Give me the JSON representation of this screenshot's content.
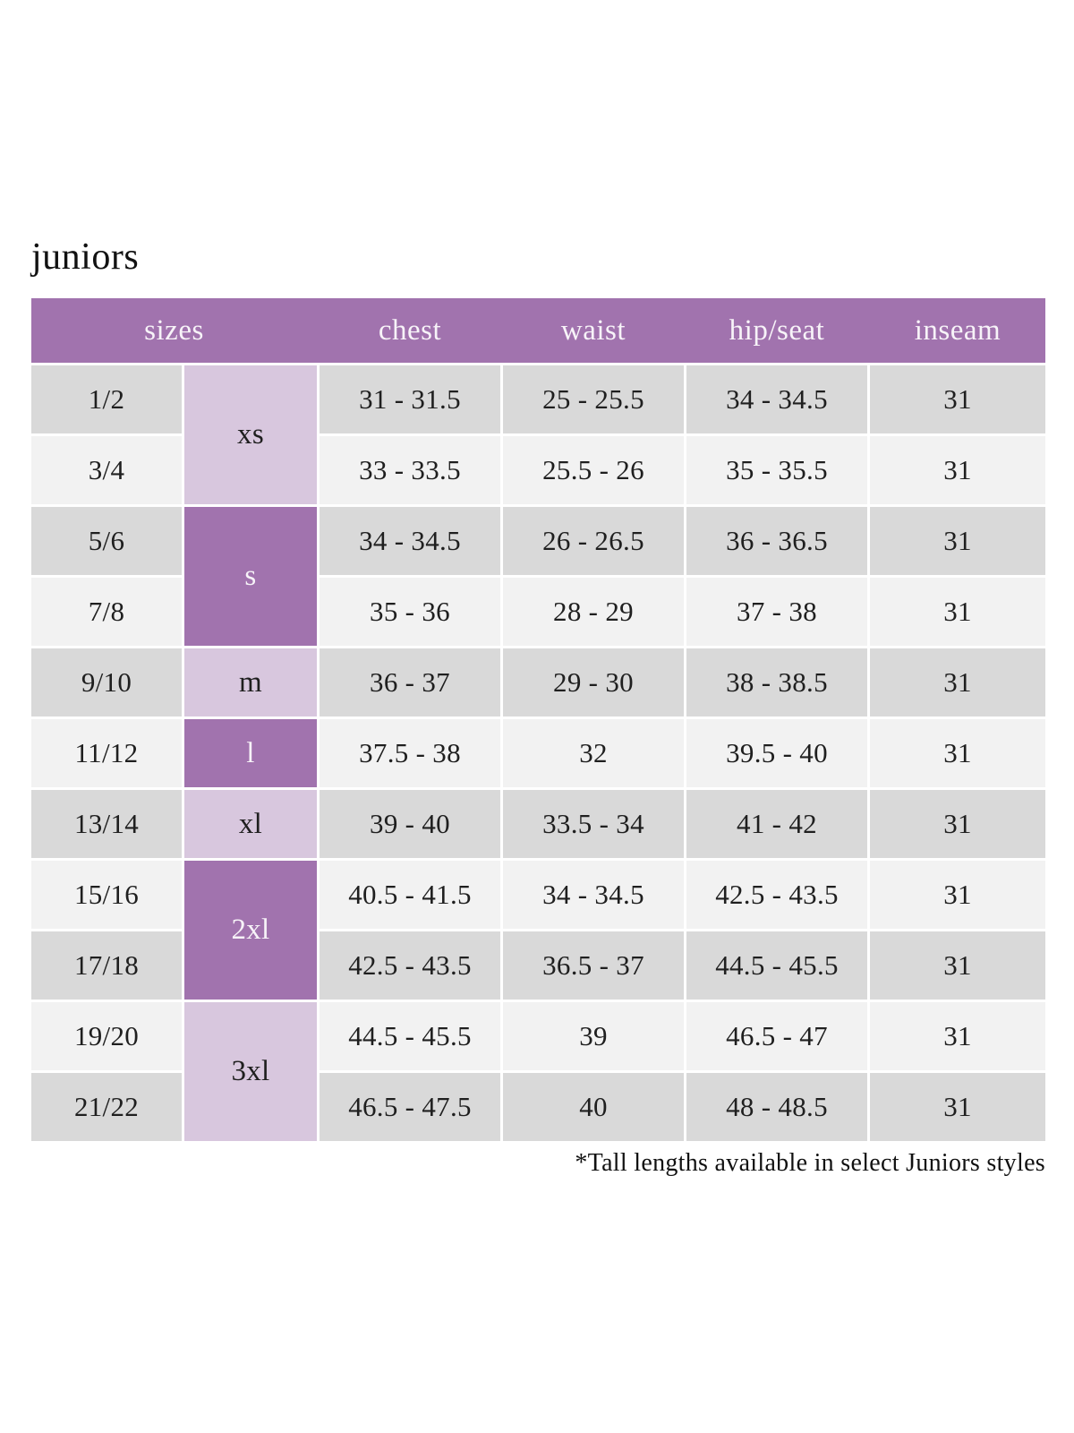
{
  "page": {
    "title": "juniors",
    "footnote": "*Tall lengths available in select Juniors styles"
  },
  "colors": {
    "header_purple": "#a173ae",
    "light_purple": "#d8c7de",
    "row_gray": "#d9d9d9",
    "row_light": "#f2f2f2",
    "header_text": "#f7f3f8",
    "body_text": "#1f1f1f"
  },
  "table": {
    "headers": {
      "sizes": "sizes",
      "chest": "chest",
      "waist": "waist",
      "hip_seat": "hip/seat",
      "inseam": "inseam"
    },
    "letter_sizes": {
      "xs": "xs",
      "s": "s",
      "m": "m",
      "l": "l",
      "xl": "xl",
      "xxl": "2xl",
      "xxxl": "3xl"
    },
    "rows": [
      {
        "size": "1/2",
        "chest": "31 - 31.5",
        "waist": "25 - 25.5",
        "hip_seat": "34 - 34.5",
        "inseam": "31"
      },
      {
        "size": "3/4",
        "chest": "33 - 33.5",
        "waist": "25.5 - 26",
        "hip_seat": "35 - 35.5",
        "inseam": "31"
      },
      {
        "size": "5/6",
        "chest": "34 - 34.5",
        "waist": "26 - 26.5",
        "hip_seat": "36 - 36.5",
        "inseam": "31"
      },
      {
        "size": "7/8",
        "chest": "35 - 36",
        "waist": "28 - 29",
        "hip_seat": "37 - 38",
        "inseam": "31"
      },
      {
        "size": "9/10",
        "chest": "36 - 37",
        "waist": "29 - 30",
        "hip_seat": "38 - 38.5",
        "inseam": "31"
      },
      {
        "size": "11/12",
        "chest": "37.5 - 38",
        "waist": "32",
        "hip_seat": "39.5 - 40",
        "inseam": "31"
      },
      {
        "size": "13/14",
        "chest": "39 - 40",
        "waist": "33.5 - 34",
        "hip_seat": "41 - 42",
        "inseam": "31"
      },
      {
        "size": "15/16",
        "chest": "40.5 - 41.5",
        "waist": "34 - 34.5",
        "hip_seat": "42.5 - 43.5",
        "inseam": "31"
      },
      {
        "size": "17/18",
        "chest": "42.5 - 43.5",
        "waist": "36.5 - 37",
        "hip_seat": "44.5 - 45.5",
        "inseam": "31"
      },
      {
        "size": "19/20",
        "chest": "44.5 - 45.5",
        "waist": "39",
        "hip_seat": "46.5 - 47",
        "inseam": "31"
      },
      {
        "size": "21/22",
        "chest": "46.5 - 47.5",
        "waist": "40",
        "hip_seat": "48 - 48.5",
        "inseam": "31"
      }
    ]
  },
  "chart_data": {
    "type": "table",
    "title": "juniors",
    "columns": [
      "sizes (numeric)",
      "sizes (letter)",
      "chest",
      "waist",
      "hip/seat",
      "inseam"
    ],
    "rows": [
      [
        "1/2",
        "xs",
        "31 - 31.5",
        "25 - 25.5",
        "34 - 34.5",
        "31"
      ],
      [
        "3/4",
        "xs",
        "33 - 33.5",
        "25.5 - 26",
        "35 - 35.5",
        "31"
      ],
      [
        "5/6",
        "s",
        "34 - 34.5",
        "26 - 26.5",
        "36 - 36.5",
        "31"
      ],
      [
        "7/8",
        "s",
        "35 - 36",
        "28 - 29",
        "37 - 38",
        "31"
      ],
      [
        "9/10",
        "m",
        "36 - 37",
        "29 - 30",
        "38 - 38.5",
        "31"
      ],
      [
        "11/12",
        "l",
        "37.5 - 38",
        "32",
        "39.5 - 40",
        "31"
      ],
      [
        "13/14",
        "xl",
        "39 - 40",
        "33.5 - 34",
        "41 - 42",
        "31"
      ],
      [
        "15/16",
        "2xl",
        "40.5 - 41.5",
        "34 - 34.5",
        "42.5 - 43.5",
        "31"
      ],
      [
        "17/18",
        "2xl",
        "42.5 - 43.5",
        "36.5 - 37",
        "44.5 - 45.5",
        "31"
      ],
      [
        "19/20",
        "3xl",
        "44.5 - 45.5",
        "39",
        "46.5 - 47",
        "31"
      ],
      [
        "21/22",
        "3xl",
        "46.5 - 47.5",
        "40",
        "48 - 48.5",
        "31"
      ]
    ],
    "footnote": "*Tall lengths available in select Juniors styles",
    "layout_hints": {
      "merged_letter_groups": [
        {
          "label": "xs",
          "spans_rows": [
            "1/2",
            "3/4"
          ],
          "shade": "light"
        },
        {
          "label": "s",
          "spans_rows": [
            "5/6",
            "7/8"
          ],
          "shade": "dark"
        },
        {
          "label": "m",
          "spans_rows": [
            "9/10"
          ],
          "shade": "light"
        },
        {
          "label": "l",
          "spans_rows": [
            "11/12"
          ],
          "shade": "dark"
        },
        {
          "label": "xl",
          "spans_rows": [
            "13/14"
          ],
          "shade": "light"
        },
        {
          "label": "2xl",
          "spans_rows": [
            "15/16",
            "17/18"
          ],
          "shade": "dark"
        },
        {
          "label": "3xl",
          "spans_rows": [
            "19/20",
            "21/22"
          ],
          "shade": "light"
        }
      ],
      "row_striping": "alternating gray / light-gray starting gray",
      "header_position": "top, continuous purple band"
    }
  }
}
